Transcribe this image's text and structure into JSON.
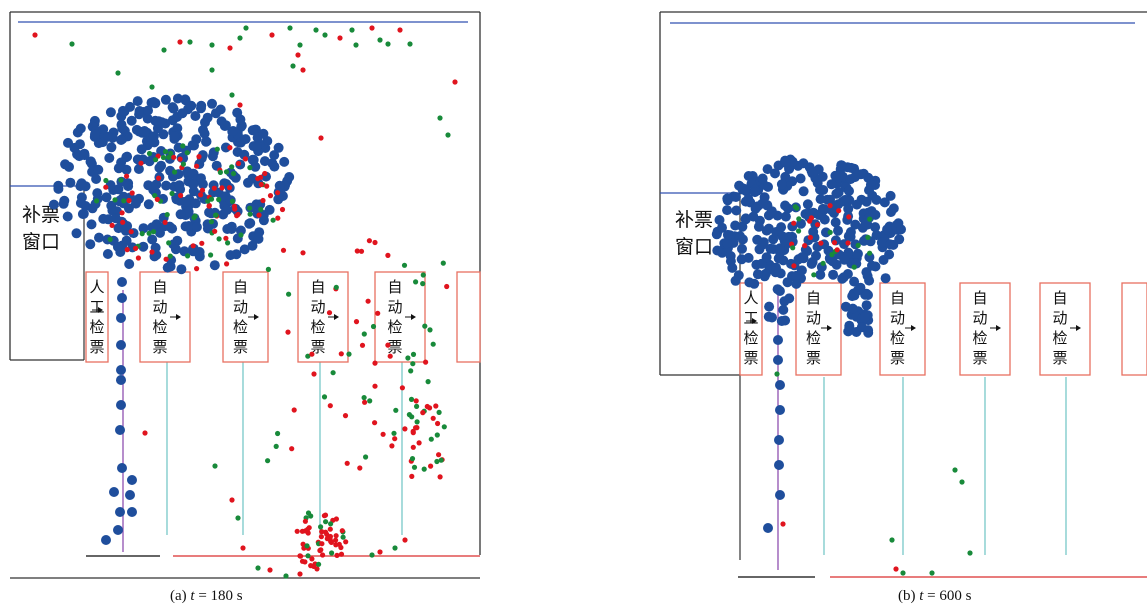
{
  "palette": {
    "blue_agent": "#1f4e9c",
    "red_agent": "#e0141e",
    "green_agent": "#188a3a",
    "boundary_blue": "#3050b0",
    "gate_box": "#e87060",
    "wall": "#333333",
    "channel_cyan": "#78c8c8",
    "channel_purple": "#9050b0",
    "exit_red": "#e05050"
  },
  "panels": [
    {
      "id": "a",
      "caption_prefix": "(a) ",
      "caption_var": "t",
      "caption_value": " = 180 s",
      "window_label_line1": "补票",
      "window_label_line2": "窗口",
      "gates": [
        {
          "label": [
            "人",
            "工",
            "检",
            "票"
          ],
          "kind": "manual"
        },
        {
          "label": [
            "自",
            "动",
            "检",
            "票"
          ],
          "kind": "auto"
        },
        {
          "label": [
            "自",
            "动",
            "检",
            "票"
          ],
          "kind": "auto"
        },
        {
          "label": [
            "自",
            "动",
            "检",
            "票"
          ],
          "kind": "auto"
        },
        {
          "label": [
            "自",
            "动",
            "检",
            "票"
          ],
          "kind": "auto"
        },
        {
          "label": [],
          "kind": "partial"
        }
      ]
    },
    {
      "id": "b",
      "caption_prefix": "(b) ",
      "caption_var": "t",
      "caption_value": " = 600 s",
      "window_label_line1": "补票",
      "window_label_line2": "窗口",
      "gates": [
        {
          "label": [
            "人",
            "工",
            "检",
            "票"
          ],
          "kind": "manual"
        },
        {
          "label": [
            "自",
            "动",
            "检",
            "票"
          ],
          "kind": "auto"
        },
        {
          "label": [
            "自",
            "动",
            "检",
            "票"
          ],
          "kind": "auto"
        },
        {
          "label": [
            "自",
            "动",
            "检",
            "票"
          ],
          "kind": "auto"
        },
        {
          "label": [
            "自",
            "动",
            "检",
            "票"
          ],
          "kind": "auto"
        },
        {
          "label": [],
          "kind": "partial"
        }
      ]
    }
  ]
}
